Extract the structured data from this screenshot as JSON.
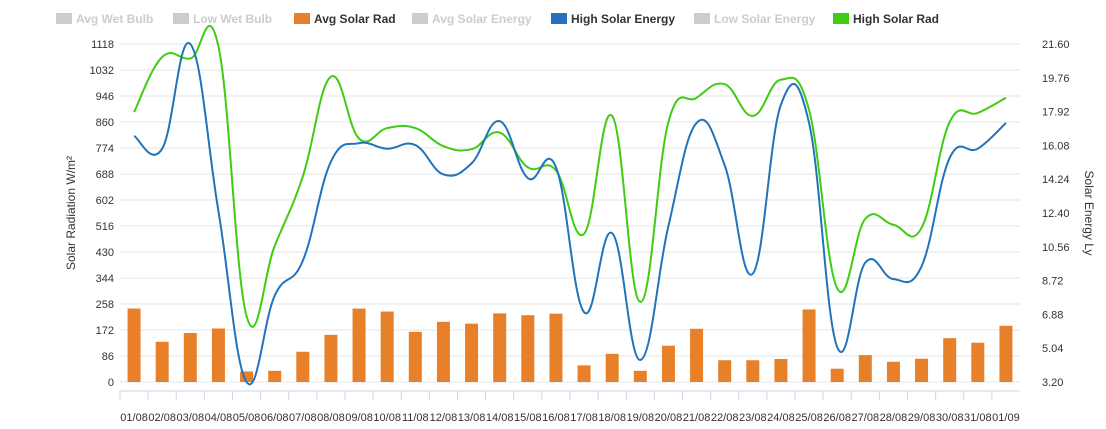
{
  "chart_data": {
    "type": "bar+line",
    "legend": {
      "placement": "top-left",
      "items": [
        {
          "key": "avg_wet_bulb",
          "label": "Avg Wet Bulb",
          "active": false,
          "color": "#cccccc"
        },
        {
          "key": "low_wet_bulb",
          "label": "Low Wet Bulb",
          "active": false,
          "color": "#cccccc"
        },
        {
          "key": "avg_solar_rad",
          "label": "Avg Solar Rad",
          "active": true,
          "color": "#e8802a"
        },
        {
          "key": "avg_solar_energy",
          "label": "Avg Solar Energy",
          "active": false,
          "color": "#cccccc"
        },
        {
          "key": "high_solar_energy",
          "label": "High Solar Energy",
          "active": true,
          "color": "#2273bb"
        },
        {
          "key": "low_solar_energy",
          "label": "Low Solar Energy",
          "active": false,
          "color": "#cccccc"
        },
        {
          "key": "high_solar_rad",
          "label": "High Solar Rad",
          "active": true,
          "color": "#3fcc12"
        }
      ]
    },
    "categories": [
      "01/08",
      "02/08",
      "03/08",
      "04/08",
      "05/08",
      "06/08",
      "07/08",
      "08/08",
      "09/08",
      "10/08",
      "11/08",
      "12/08",
      "13/08",
      "14/08",
      "15/08",
      "16/08",
      "17/08",
      "18/08",
      "19/08",
      "20/08",
      "21/08",
      "22/08",
      "23/08",
      "24/08",
      "25/08",
      "26/08",
      "27/08",
      "28/08",
      "29/08",
      "30/08",
      "31/08",
      "01/09"
    ],
    "y_left": {
      "label": "Solar Radiation W/m²",
      "min": 0,
      "max": 1118,
      "ticks": [
        "0",
        "86",
        "172",
        "258",
        "344",
        "430",
        "516",
        "602",
        "688",
        "774",
        "860",
        "946",
        "1032",
        "1118"
      ]
    },
    "y_right": {
      "label": "Solar Energy Ly",
      "min": 3.2,
      "max": 21.6,
      "ticks": [
        "3.20",
        "5.04",
        "6.88",
        "8.72",
        "10.56",
        "12.40",
        "14.24",
        "16.08",
        "17.92",
        "19.76",
        "21.60"
      ]
    },
    "grid": true,
    "series": [
      {
        "key": "avg_solar_rad",
        "name": "Avg Solar Rad",
        "type": "bar",
        "axis": "left",
        "color": "#e8802a",
        "values": [
          243,
          133,
          162,
          177,
          35,
          37,
          100,
          156,
          243,
          233,
          166,
          199,
          193,
          227,
          221,
          226,
          55,
          93,
          37,
          120,
          176,
          72,
          72,
          76,
          240,
          44,
          89,
          67,
          77,
          145,
          130,
          186
        ]
      },
      {
        "key": "high_solar_rad",
        "name": "High Solar Rad",
        "type": "line",
        "axis": "left",
        "color": "#3fcc12",
        "values": [
          893,
          1075,
          1070,
          1110,
          218,
          450,
          680,
          1010,
          805,
          840,
          840,
          780,
          770,
          825,
          710,
          700,
          490,
          880,
          265,
          860,
          940,
          985,
          880,
          1000,
          900,
          310,
          540,
          520,
          510,
          860,
          890,
          940
        ]
      },
      {
        "key": "high_solar_energy",
        "name": "High Solar Energy",
        "type": "line",
        "axis": "right",
        "color": "#2273bb",
        "values": [
          16.6,
          15.9,
          21.6,
          12.5,
          3.2,
          7.9,
          9.8,
          15.2,
          16.2,
          15.9,
          16.1,
          14.5,
          15.1,
          17.4,
          14.3,
          14.9,
          7.0,
          11.3,
          4.4,
          11.7,
          17.3,
          15.0,
          9.1,
          18.3,
          17.3,
          5.1,
          9.7,
          8.8,
          9.5,
          15.4,
          15.9,
          17.3
        ]
      }
    ]
  }
}
